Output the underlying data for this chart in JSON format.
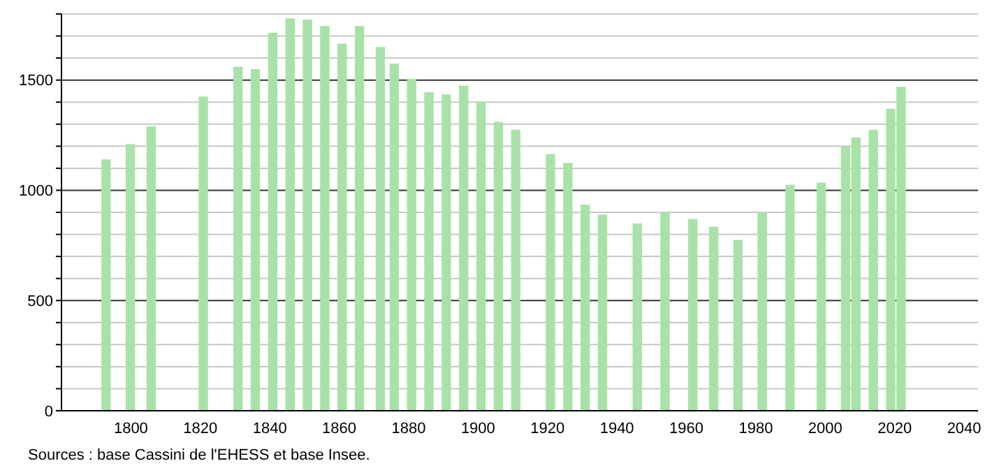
{
  "chart_data": {
    "type": "bar",
    "color": "#a8e2a8",
    "x": [
      1793,
      1800,
      1806,
      1821,
      1831,
      1836,
      1841,
      1846,
      1851,
      1856,
      1861,
      1866,
      1872,
      1876,
      1881,
      1886,
      1891,
      1896,
      1901,
      1906,
      1911,
      1921,
      1926,
      1931,
      1936,
      1946,
      1954,
      1962,
      1968,
      1975,
      1982,
      1990,
      1999,
      2006,
      2009,
      2014,
      2019,
      2022
    ],
    "values": [
      1140,
      1210,
      1290,
      1425,
      1560,
      1550,
      1715,
      1780,
      1775,
      1745,
      1665,
      1745,
      1650,
      1575,
      1505,
      1445,
      1435,
      1475,
      1400,
      1310,
      1275,
      1165,
      1125,
      935,
      890,
      850,
      900,
      870,
      835,
      775,
      900,
      1025,
      1035,
      1200,
      1240,
      1275,
      1370,
      1470
    ],
    "xlim": [
      1780,
      2044
    ],
    "xticks": [
      1800,
      1820,
      1840,
      1860,
      1880,
      1900,
      1920,
      1940,
      1960,
      1980,
      2000,
      2020,
      2040
    ],
    "ylim": [
      0,
      1800
    ],
    "yticks": [
      0,
      {
        "value": 100,
        "label": null
      },
      {
        "value": 200,
        "label": null
      },
      {
        "value": 300,
        "label": null
      },
      {
        "value": 400,
        "label": null
      },
      500,
      {
        "value": 600,
        "label": null
      },
      {
        "value": 700,
        "label": null
      },
      {
        "value": 800,
        "label": null
      },
      {
        "value": 900,
        "label": null
      },
      1000,
      {
        "value": 1100,
        "label": null
      },
      {
        "value": 1200,
        "label": null
      },
      {
        "value": 1300,
        "label": null
      },
      {
        "value": 1400,
        "label": null
      },
      1500,
      {
        "value": 1600,
        "label": null
      },
      {
        "value": 1700,
        "label": null
      },
      {
        "value": 1800,
        "label": null
      }
    ],
    "grid": "y",
    "annotations": [
      "Sources : base Cassini de l'EHESS et base Insee."
    ]
  }
}
